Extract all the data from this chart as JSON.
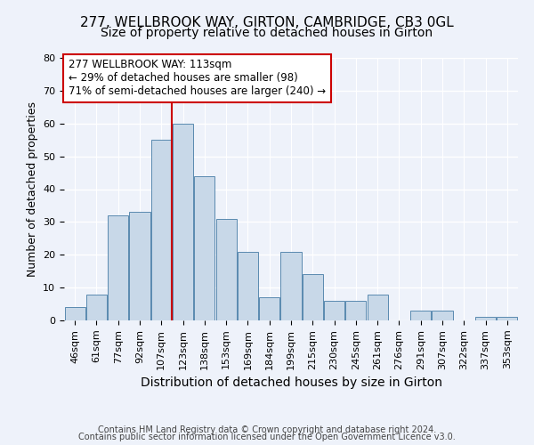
{
  "title": "277, WELLBROOK WAY, GIRTON, CAMBRIDGE, CB3 0GL",
  "subtitle": "Size of property relative to detached houses in Girton",
  "xlabel": "Distribution of detached houses by size in Girton",
  "ylabel": "Number of detached properties",
  "categories": [
    "46sqm",
    "61sqm",
    "77sqm",
    "92sqm",
    "107sqm",
    "123sqm",
    "138sqm",
    "153sqm",
    "169sqm",
    "184sqm",
    "199sqm",
    "215sqm",
    "230sqm",
    "245sqm",
    "261sqm",
    "276sqm",
    "291sqm",
    "307sqm",
    "322sqm",
    "337sqm",
    "353sqm"
  ],
  "values": [
    4,
    8,
    32,
    33,
    55,
    60,
    44,
    31,
    21,
    7,
    21,
    14,
    6,
    6,
    8,
    0,
    3,
    3,
    0,
    1,
    1
  ],
  "bar_color": "#c8d8e8",
  "bar_edge_color": "#5a8ab0",
  "reference_line_index": 5,
  "reference_line_color": "#cc0000",
  "annotation_text": "277 WELLBROOK WAY: 113sqm\n← 29% of detached houses are smaller (98)\n71% of semi-detached houses are larger (240) →",
  "annotation_box_facecolor": "#ffffff",
  "annotation_box_edgecolor": "#cc0000",
  "ylim": [
    0,
    80
  ],
  "yticks": [
    0,
    10,
    20,
    30,
    40,
    50,
    60,
    70,
    80
  ],
  "background_color": "#eef2fa",
  "grid_color": "#ffffff",
  "footer1": "Contains HM Land Registry data © Crown copyright and database right 2024.",
  "footer2": "Contains public sector information licensed under the Open Government Licence v3.0.",
  "title_fontsize": 11,
  "subtitle_fontsize": 10,
  "ylabel_fontsize": 9,
  "xlabel_fontsize": 10,
  "tick_fontsize": 8,
  "footer_fontsize": 7,
  "annot_fontsize": 8.5
}
